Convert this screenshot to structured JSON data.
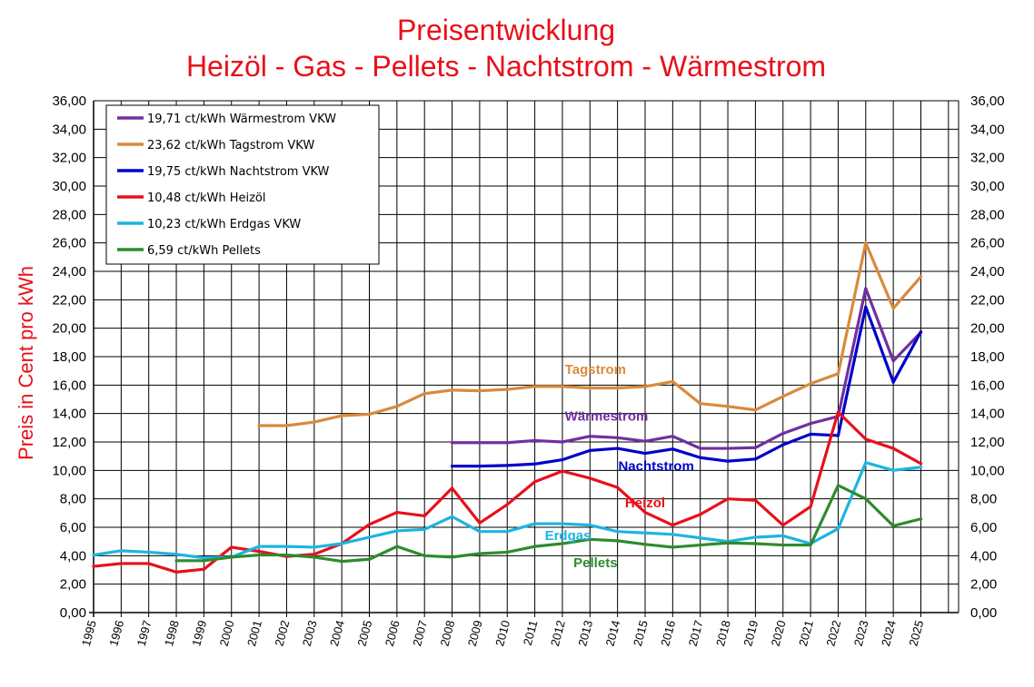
{
  "chart_data": {
    "type": "line",
    "title": "Preisentwicklung",
    "subtitle": "Heizöl - Gas - Pellets - Nachtstrom - Wärmestrom",
    "ylabel": "Preis in Cent pro kWh",
    "xlabel": "",
    "ylim": [
      0,
      36
    ],
    "yticks": [
      "0,00",
      "2,00",
      "4,00",
      "6,00",
      "8,00",
      "10,00",
      "12,00",
      "14,00",
      "16,00",
      "18,00",
      "20,00",
      "22,00",
      "24,00",
      "26,00",
      "28,00",
      "30,00",
      "32,00",
      "34,00",
      "36,00"
    ],
    "x": [
      "1995",
      "1996",
      "1997",
      "1998",
      "1999",
      "2000",
      "2001",
      "2002",
      "2003",
      "2004",
      "2005",
      "2006",
      "2007",
      "2008",
      "2009",
      "2010",
      "2011",
      "2012",
      "2013",
      "2014",
      "2015",
      "2016",
      "2017",
      "2018",
      "2019",
      "2020",
      "2021",
      "2022",
      "2023",
      "2024",
      "2025"
    ],
    "grid": true,
    "legend_position": "top-left",
    "series": [
      {
        "name": "19,71 ct/kWh Wärmestrom VKW",
        "label": "Wärmestrom",
        "color": "#7030a0",
        "values": [
          null,
          null,
          null,
          null,
          null,
          null,
          null,
          null,
          null,
          null,
          null,
          null,
          null,
          11.95,
          11.95,
          11.95,
          12.1,
          12.0,
          12.4,
          12.3,
          12.05,
          12.4,
          11.55,
          11.55,
          11.6,
          12.6,
          13.3,
          13.8,
          22.8,
          17.7,
          19.71
        ]
      },
      {
        "name": "23,62 ct/kWh Tagstrom VKW",
        "label": "Tagstrom",
        "color": "#d98a3c",
        "values": [
          null,
          null,
          null,
          null,
          null,
          null,
          13.15,
          13.15,
          13.4,
          13.85,
          13.95,
          14.5,
          15.4,
          15.65,
          15.6,
          15.7,
          15.9,
          15.9,
          15.8,
          15.8,
          15.9,
          16.25,
          14.7,
          14.5,
          14.25,
          15.2,
          16.1,
          16.8,
          26.0,
          21.4,
          23.62
        ]
      },
      {
        "name": "19,75 ct/kWh Nachtstrom VKW",
        "label": "Nachtstrom",
        "color": "#0000cc",
        "values": [
          null,
          null,
          null,
          null,
          null,
          null,
          null,
          null,
          null,
          null,
          null,
          null,
          null,
          10.3,
          10.3,
          10.35,
          10.45,
          10.75,
          11.4,
          11.55,
          11.2,
          11.5,
          10.9,
          10.65,
          10.8,
          11.8,
          12.55,
          12.45,
          21.5,
          16.2,
          19.75
        ]
      },
      {
        "name": "10,48 ct/kWh Heizöl",
        "label": "Heizöl",
        "color": "#e8101a",
        "values": [
          3.25,
          3.45,
          3.45,
          2.85,
          3.05,
          4.6,
          4.3,
          3.95,
          4.1,
          4.85,
          6.2,
          7.05,
          6.8,
          8.75,
          6.3,
          7.6,
          9.2,
          9.95,
          9.45,
          8.8,
          7.05,
          6.15,
          6.9,
          8.0,
          7.9,
          6.15,
          7.45,
          14.1,
          12.2,
          11.55,
          10.48
        ]
      },
      {
        "name": "10,23 ct/kWh Erdgas VKW",
        "label": "Erdgas",
        "color": "#1cb5e0",
        "values": [
          4.05,
          4.35,
          4.25,
          4.1,
          3.85,
          3.9,
          4.65,
          4.65,
          4.6,
          4.85,
          5.3,
          5.75,
          5.85,
          6.75,
          5.7,
          5.7,
          6.25,
          6.25,
          6.15,
          5.7,
          5.6,
          5.5,
          5.25,
          5.0,
          5.3,
          5.4,
          4.85,
          5.9,
          10.55,
          10.0,
          10.23
        ]
      },
      {
        "name": "6,59 ct/kWh Pellets",
        "label": "Pellets",
        "color": "#2e8b2e",
        "values": [
          null,
          null,
          null,
          3.65,
          3.65,
          3.9,
          4.05,
          4.05,
          3.9,
          3.6,
          3.75,
          4.65,
          4.0,
          3.9,
          4.15,
          4.25,
          4.65,
          4.85,
          5.15,
          5.05,
          4.8,
          4.6,
          4.75,
          4.9,
          4.85,
          4.75,
          4.75,
          8.95,
          8.0,
          6.1,
          6.59
        ]
      }
    ],
    "annotations": [
      {
        "text": "Tagstrom",
        "color": "#d98a3c",
        "x": 2013.2,
        "y": 16.8
      },
      {
        "text": "Wärmestrom",
        "color": "#7030a0",
        "x": 2013.6,
        "y": 13.5
      },
      {
        "text": "Nachtstrom",
        "color": "#0000cc",
        "x": 2015.4,
        "y": 10.0
      },
      {
        "text": "Heizöl",
        "color": "#e8101a",
        "x": 2015.0,
        "y": 7.4
      },
      {
        "text": "Erdgas",
        "color": "#1cb5e0",
        "x": 2012.2,
        "y": 5.1
      },
      {
        "text": "Pellets",
        "color": "#2e8b2e",
        "x": 2013.2,
        "y": 3.2
      }
    ]
  }
}
